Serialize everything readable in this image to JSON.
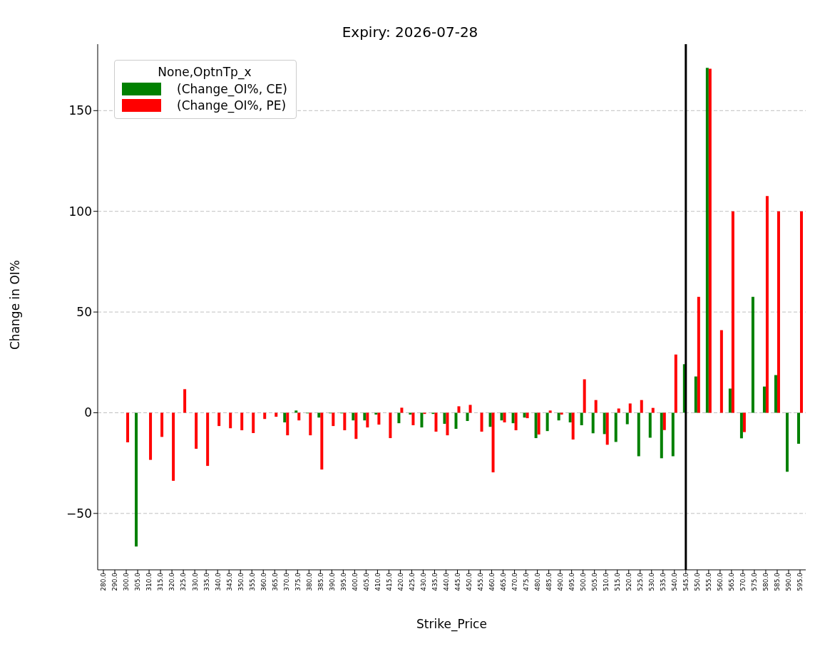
{
  "chart_data": {
    "type": "bar",
    "title": "Expiry: 2026-07-28",
    "xlabel": "Strike_Price",
    "ylabel": "Change in OI%",
    "legend_title": "None,OptnTp_x",
    "categories": [
      "280.0",
      "290.0",
      "300.0",
      "305.0",
      "310.0",
      "315.0",
      "320.0",
      "325.0",
      "330.0",
      "335.0",
      "340.0",
      "345.0",
      "350.0",
      "355.0",
      "360.0",
      "365.0",
      "370.0",
      "375.0",
      "380.0",
      "385.0",
      "390.0",
      "395.0",
      "400.0",
      "405.0",
      "410.0",
      "415.0",
      "420.0",
      "425.0",
      "430.0",
      "435.0",
      "440.0",
      "445.0",
      "450.0",
      "455.0",
      "460.0",
      "465.0",
      "470.0",
      "475.0",
      "480.0",
      "485.0",
      "490.0",
      "495.0",
      "500.0",
      "505.0",
      "510.0",
      "515.0",
      "520.0",
      "525.0",
      "530.0",
      "535.0",
      "540.0",
      "545.0",
      "550.0",
      "555.0",
      "560.0",
      "565.0",
      "570.0",
      "575.0",
      "580.0",
      "585.0",
      "590.0",
      "595.0"
    ],
    "series": [
      {
        "name": "(Change_OI%, CE)",
        "color": "#008000",
        "values": [
          null,
          null,
          null,
          -66.4,
          null,
          null,
          null,
          null,
          null,
          null,
          null,
          null,
          null,
          null,
          null,
          null,
          -4.8,
          1.1,
          -0.3,
          -2.4,
          -0.3,
          -0.3,
          -3.8,
          -3.8,
          -0.9,
          null,
          -5.2,
          -0.9,
          -7.3,
          -0.6,
          -5.5,
          -8.0,
          -4.1,
          null,
          -7.0,
          -3.8,
          -5.2,
          -2.4,
          -12.6,
          -9.1,
          -3.8,
          -4.8,
          -6.2,
          -10.2,
          -10.6,
          -14.5,
          -5.7,
          -21.6,
          -12.4,
          -22.6,
          -21.6,
          24.1,
          18.0,
          171.2,
          null,
          12.0,
          -12.7,
          57.5,
          13.0,
          18.7,
          -29.3,
          -15.4
        ]
      },
      {
        "name": "(Change_OI%, PE)",
        "color": "#ff0000",
        "values": [
          null,
          null,
          -14.7,
          null,
          -23.4,
          -12.0,
          -33.8,
          11.7,
          -17.9,
          -26.4,
          -6.6,
          -7.7,
          -8.7,
          -10.1,
          -3.1,
          -2.0,
          -11.2,
          -3.8,
          -11.2,
          -28.2,
          -6.6,
          -8.7,
          -13.0,
          -7.3,
          -5.9,
          -12.6,
          2.5,
          -6.2,
          -0.6,
          -9.4,
          -11.2,
          3.2,
          3.9,
          -9.4,
          -29.6,
          -4.8,
          -8.7,
          -2.7,
          -10.8,
          1.1,
          -0.9,
          -13.3,
          16.6,
          6.3,
          -15.9,
          2.1,
          4.6,
          6.3,
          2.4,
          -8.6,
          28.9,
          null,
          57.5,
          170.8,
          41.0,
          100,
          -9.6,
          null,
          107.6,
          100,
          null,
          100
        ]
      }
    ],
    "ylim": [
      -78,
      183
    ],
    "yticks": [
      {
        "value": -50,
        "label": "−50"
      },
      0,
      50,
      100,
      150
    ],
    "grid": "y",
    "legend": "top left",
    "ref_lines": [
      {
        "axis": "x",
        "value": "545.0",
        "color": "#000000"
      }
    ]
  }
}
